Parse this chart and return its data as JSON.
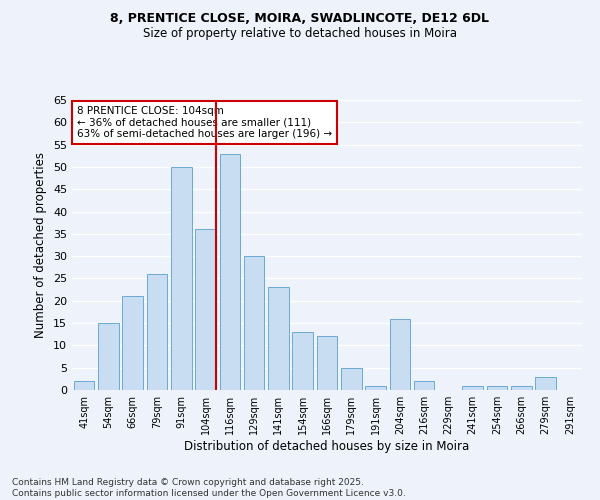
{
  "title1": "8, PRENTICE CLOSE, MOIRA, SWADLINCOTE, DE12 6DL",
  "title2": "Size of property relative to detached houses in Moira",
  "xlabel": "Distribution of detached houses by size in Moira",
  "ylabel": "Number of detached properties",
  "categories": [
    "41sqm",
    "54sqm",
    "66sqm",
    "79sqm",
    "91sqm",
    "104sqm",
    "116sqm",
    "129sqm",
    "141sqm",
    "154sqm",
    "166sqm",
    "179sqm",
    "191sqm",
    "204sqm",
    "216sqm",
    "229sqm",
    "241sqm",
    "254sqm",
    "266sqm",
    "279sqm",
    "291sqm"
  ],
  "values": [
    2,
    15,
    21,
    26,
    50,
    36,
    53,
    30,
    23,
    13,
    12,
    5,
    1,
    16,
    2,
    0,
    1,
    1,
    1,
    3,
    0
  ],
  "bar_color": "#c9ddf2",
  "bar_edge_color": "#6aaad4",
  "highlight_index": 5,
  "highlight_line_color": "#cc0000",
  "annotation_text": "8 PRENTICE CLOSE: 104sqm\n← 36% of detached houses are smaller (111)\n63% of semi-detached houses are larger (196) →",
  "annotation_box_color": "#ffffff",
  "annotation_box_edge_color": "#cc0000",
  "ylim": [
    0,
    65
  ],
  "yticks": [
    0,
    5,
    10,
    15,
    20,
    25,
    30,
    35,
    40,
    45,
    50,
    55,
    60,
    65
  ],
  "background_color": "#eef2fb",
  "grid_color": "#ffffff",
  "footnote": "Contains HM Land Registry data © Crown copyright and database right 2025.\nContains public sector information licensed under the Open Government Licence v3.0."
}
